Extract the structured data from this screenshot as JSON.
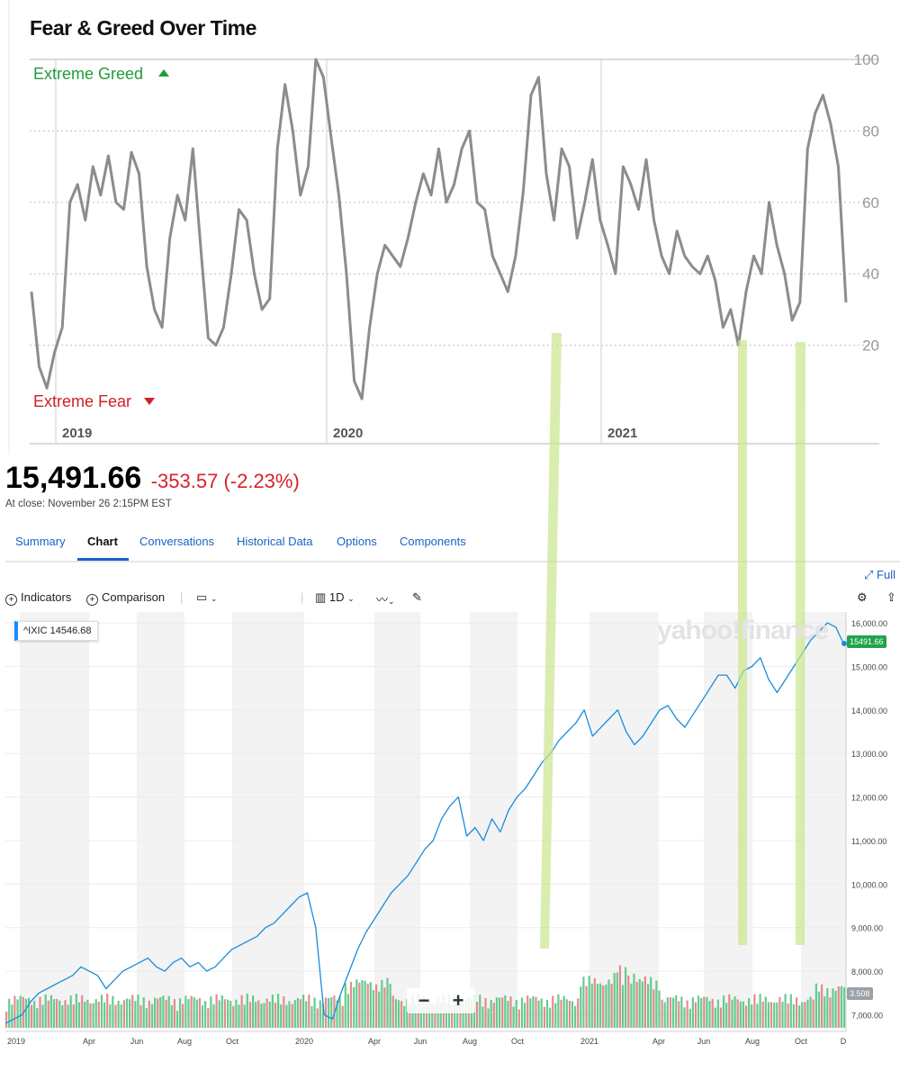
{
  "fear_greed": {
    "title": "Fear & Greed Over Time",
    "top_label": "Extreme Greed",
    "bottom_label": "Extreme Fear",
    "colors": {
      "greed": "#1f9d3a",
      "fear": "#d01f26",
      "line": "#8c8c8c"
    }
  },
  "quote": {
    "price": "15,491.66",
    "change": "-353.57 (-2.23%)",
    "close_time": "At close: November 26 2:15PM EST"
  },
  "tabs": [
    "Summary",
    "Chart",
    "Conversations",
    "Historical Data",
    "Options",
    "Components"
  ],
  "toolbar": {
    "indicators": "Indicators",
    "comparison": "Comparison",
    "interval": "1D",
    "full": "Full"
  },
  "chart_overlay": {
    "ticker_label": "^IXIC 14546.68",
    "last_price": "15491.66",
    "volume": "3.508",
    "watermark": "yahoo!finance",
    "zoom_out": "−",
    "zoom_in": "+"
  },
  "chart_data": [
    {
      "type": "line",
      "title": "Fear & Greed Over Time",
      "x_ticks": [
        "2019",
        "2020",
        "2021"
      ],
      "y_ticks": [
        20,
        40,
        60,
        80,
        100
      ],
      "ylim": [
        0,
        100
      ],
      "xlim": [
        "2018-11",
        "2021-12"
      ],
      "grid": "dotted horizontal",
      "series": [
        {
          "values": [
            35,
            14,
            8,
            18,
            25,
            60,
            65,
            55,
            70,
            62,
            73,
            60,
            58,
            74,
            68,
            42,
            30,
            25,
            50,
            62,
            55,
            75,
            48,
            22,
            20,
            25,
            40,
            58,
            55,
            40,
            30,
            33,
            75,
            93,
            80,
            62,
            70,
            100,
            95,
            78,
            62,
            40,
            10,
            5,
            25,
            40,
            48,
            45,
            42,
            50,
            60,
            68,
            62,
            75,
            60,
            65,
            75,
            80,
            60,
            58,
            45,
            40,
            35,
            45,
            63,
            90,
            95,
            68,
            55,
            75,
            70,
            50,
            60,
            72,
            55,
            48,
            40,
            70,
            65,
            58,
            72,
            55,
            45,
            40,
            52,
            45,
            42,
            40,
            45,
            38,
            25,
            30,
            20,
            35,
            45,
            40,
            60,
            48,
            40,
            27,
            32,
            75,
            85,
            90,
            82,
            70,
            32
          ]
        }
      ]
    },
    {
      "type": "line",
      "title": "^IXIC",
      "x_ticks": [
        "2019",
        "Apr",
        "Jun",
        "Aug",
        "Oct",
        "2020",
        "Apr",
        "Jun",
        "Aug",
        "Oct",
        "2021",
        "Apr",
        "Jun",
        "Aug",
        "Oct",
        "D"
      ],
      "y_ticks": [
        "7,000.00",
        "8,000.00",
        "9,000.00",
        "10,000.00",
        "11,000.00",
        "12,000.00",
        "13,000.00",
        "14,000.00",
        "15,000.00",
        "16,000.00"
      ],
      "ylim": [
        6700,
        16250
      ],
      "xlim": [
        "2018-12",
        "2021-12"
      ],
      "series": [
        {
          "name": "^IXIC",
          "values": [
            6800,
            6900,
            7000,
            7300,
            7500,
            7600,
            7700,
            7800,
            7900,
            8100,
            8000,
            7900,
            7600,
            7800,
            8000,
            8100,
            8200,
            8300,
            8100,
            8000,
            8200,
            8300,
            8100,
            8200,
            8000,
            8100,
            8300,
            8500,
            8600,
            8700,
            8800,
            9000,
            9100,
            9300,
            9500,
            9700,
            9800,
            9000,
            7000,
            6900,
            7500,
            8000,
            8500,
            8900,
            9200,
            9500,
            9800,
            10000,
            10200,
            10500,
            10800,
            11000,
            11500,
            11800,
            12000,
            11100,
            11300,
            11000,
            11500,
            11200,
            11700,
            12000,
            12200,
            12500,
            12800,
            13000,
            13300,
            13500,
            13700,
            14000,
            13400,
            13600,
            13800,
            14000,
            13500,
            13200,
            13400,
            13700,
            14000,
            14100,
            13800,
            13600,
            13900,
            14200,
            14500,
            14800,
            14800,
            14500,
            14900,
            15000,
            15200,
            14700,
            14400,
            14700,
            15000,
            15300,
            15600,
            15800,
            16000,
            15900,
            15491
          ]
        }
      ]
    }
  ]
}
